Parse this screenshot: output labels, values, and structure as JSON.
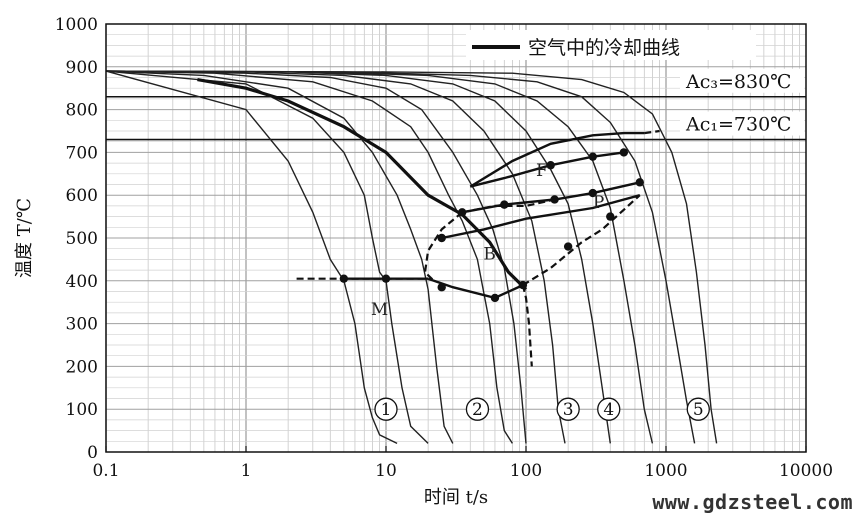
{
  "chart_data": {
    "type": "line",
    "xlabel": "时间 t/s",
    "ylabel": "温度 T/℃",
    "x_scale": "log",
    "xlim": [
      0.1,
      10000
    ],
    "ylim": [
      0,
      1000
    ],
    "x_ticks": [
      "0.1",
      "1",
      "10",
      "100",
      "1000",
      "10000"
    ],
    "x_tick_values": [
      0.1,
      1,
      10,
      100,
      1000,
      10000
    ],
    "y_ticks": [
      "0",
      "100",
      "200",
      "300",
      "400",
      "500",
      "600",
      "700",
      "800",
      "900",
      "1000"
    ],
    "y_tick_values": [
      0,
      100,
      200,
      300,
      400,
      500,
      600,
      700,
      800,
      900,
      1000
    ],
    "grid": true,
    "legend": {
      "label": "空气中的冷却曲线",
      "placement": "top-right"
    },
    "annotations": [
      {
        "text": "Ac₃=830℃",
        "y": 830
      },
      {
        "text": "Ac₁=730℃",
        "y": 730
      }
    ],
    "region_labels": [
      "F",
      "P",
      "B",
      "M"
    ],
    "curve_labels": [
      "①",
      "②",
      "③",
      "④",
      "⑤"
    ],
    "cooling_curves": [
      {
        "points": [
          [
            0.1,
            890
          ],
          [
            1,
            800
          ],
          [
            2,
            680
          ],
          [
            3,
            560
          ],
          [
            4,
            450
          ],
          [
            5,
            400
          ],
          [
            6,
            300
          ],
          [
            7,
            150
          ],
          [
            8,
            80
          ],
          [
            9,
            40
          ],
          [
            12,
            20
          ]
        ]
      },
      {
        "points": [
          [
            0.1,
            890
          ],
          [
            1,
            860
          ],
          [
            3,
            780
          ],
          [
            5,
            700
          ],
          [
            7,
            600
          ],
          [
            8,
            500
          ],
          [
            9,
            420
          ],
          [
            10,
            400
          ],
          [
            11,
            300
          ],
          [
            13,
            150
          ],
          [
            15,
            60
          ],
          [
            20,
            20
          ]
        ]
      },
      {
        "points": [
          [
            0.1,
            890
          ],
          [
            0.5,
            880
          ],
          [
            2,
            850
          ],
          [
            5,
            780
          ],
          [
            8,
            700
          ],
          [
            12,
            600
          ],
          [
            15,
            520
          ],
          [
            18,
            450
          ],
          [
            20,
            380
          ],
          [
            23,
            200
          ],
          [
            26,
            60
          ],
          [
            30,
            20
          ]
        ]
      },
      {
        "points": [
          [
            0.1,
            890
          ],
          [
            0.6,
            885
          ],
          [
            3,
            865
          ],
          [
            8,
            820
          ],
          [
            15,
            760
          ],
          [
            20,
            700
          ],
          [
            28,
            600
          ],
          [
            35,
            540
          ],
          [
            45,
            450
          ],
          [
            55,
            300
          ],
          [
            62,
            150
          ],
          [
            70,
            50
          ],
          [
            80,
            20
          ]
        ]
      },
      {
        "points": [
          [
            0.1,
            890
          ],
          [
            1,
            885
          ],
          [
            4,
            875
          ],
          [
            10,
            850
          ],
          [
            18,
            800
          ],
          [
            30,
            700
          ],
          [
            45,
            600
          ],
          [
            58,
            520
          ],
          [
            70,
            430
          ],
          [
            82,
            300
          ],
          [
            92,
            150
          ],
          [
            100,
            20
          ]
        ]
      },
      {
        "points": [
          [
            0.1,
            890
          ],
          [
            1,
            888
          ],
          [
            5,
            880
          ],
          [
            15,
            860
          ],
          [
            30,
            820
          ],
          [
            50,
            750
          ],
          [
            80,
            650
          ],
          [
            110,
            540
          ],
          [
            135,
            400
          ],
          [
            155,
            250
          ],
          [
            170,
            100
          ],
          [
            190,
            20
          ]
        ]
      },
      {
        "points": [
          [
            0.1,
            890
          ],
          [
            2,
            888
          ],
          [
            10,
            880
          ],
          [
            30,
            860
          ],
          [
            60,
            820
          ],
          [
            100,
            750
          ],
          [
            150,
            660
          ],
          [
            200,
            580
          ],
          [
            250,
            450
          ],
          [
            300,
            300
          ],
          [
            350,
            150
          ],
          [
            400,
            20
          ]
        ]
      },
      {
        "points": [
          [
            0.1,
            890
          ],
          [
            3,
            888
          ],
          [
            20,
            880
          ],
          [
            60,
            860
          ],
          [
            120,
            820
          ],
          [
            200,
            760
          ],
          [
            300,
            680
          ],
          [
            400,
            570
          ],
          [
            500,
            400
          ],
          [
            600,
            250
          ],
          [
            700,
            100
          ],
          [
            800,
            20
          ]
        ]
      },
      {
        "points": [
          [
            0.1,
            890
          ],
          [
            5,
            888
          ],
          [
            40,
            880
          ],
          [
            120,
            865
          ],
          [
            250,
            830
          ],
          [
            400,
            770
          ],
          [
            600,
            680
          ],
          [
            800,
            560
          ],
          [
            1000,
            400
          ],
          [
            1200,
            250
          ],
          [
            1400,
            120
          ],
          [
            1600,
            20
          ]
        ]
      },
      {
        "points": [
          [
            0.1,
            890
          ],
          [
            10,
            888
          ],
          [
            80,
            885
          ],
          [
            250,
            870
          ],
          [
            500,
            840
          ],
          [
            800,
            790
          ],
          [
            1100,
            700
          ],
          [
            1400,
            580
          ],
          [
            1650,
            420
          ],
          [
            1900,
            250
          ],
          [
            2100,
            100
          ],
          [
            2300,
            20
          ]
        ]
      }
    ],
    "air_cooling_curve": {
      "name": "空气中的冷却曲线",
      "points": [
        [
          0.45,
          870
        ],
        [
          1,
          850
        ],
        [
          2,
          820
        ],
        [
          5,
          760
        ],
        [
          10,
          700
        ],
        [
          20,
          600
        ],
        [
          35,
          555
        ],
        [
          55,
          490
        ],
        [
          75,
          420
        ],
        [
          100,
          380
        ]
      ]
    },
    "transformation_lines": [
      {
        "points": [
          [
            40,
            620
          ],
          [
            80,
            680
          ],
          [
            150,
            720
          ],
          [
            300,
            740
          ],
          [
            500,
            745
          ],
          [
            700,
            745
          ]
        ]
      },
      {
        "points": [
          [
            40,
            620
          ],
          [
            70,
            640
          ],
          [
            150,
            670
          ],
          [
            300,
            690
          ],
          [
            500,
            700
          ]
        ]
      },
      {
        "points": [
          [
            35,
            560
          ],
          [
            70,
            578
          ],
          [
            160,
            590
          ],
          [
            300,
            605
          ],
          [
            650,
            630
          ]
        ]
      },
      {
        "points": [
          [
            25,
            500
          ],
          [
            50,
            520
          ],
          [
            100,
            545
          ],
          [
            300,
            570
          ],
          [
            650,
            600
          ]
        ]
      },
      {
        "points": [
          [
            5,
            405
          ],
          [
            10,
            405
          ],
          [
            20,
            405
          ]
        ]
      },
      {
        "points": [
          [
            20,
            405
          ],
          [
            30,
            385
          ],
          [
            60,
            360
          ],
          [
            95,
            390
          ]
        ]
      }
    ],
    "dashed_lines": [
      {
        "points": [
          [
            2.3,
            405
          ],
          [
            5,
            405
          ],
          [
            10,
            405
          ],
          [
            20,
            405
          ]
        ]
      },
      {
        "points": [
          [
            35,
            560
          ],
          [
            25,
            520
          ],
          [
            20,
            470
          ],
          [
            19,
            420
          ],
          [
            22,
            400
          ]
        ]
      },
      {
        "points": [
          [
            95,
            390
          ],
          [
            100,
            360
          ],
          [
            105,
            300
          ],
          [
            110,
            200
          ]
        ]
      },
      {
        "points": [
          [
            95,
            390
          ],
          [
            150,
            430
          ],
          [
            250,
            490
          ],
          [
            350,
            520
          ],
          [
            650,
            600
          ]
        ]
      },
      {
        "points": [
          [
            700,
            745
          ],
          [
            900,
            750
          ]
        ]
      },
      {
        "points": [
          [
            35,
            560
          ],
          [
            60,
            575
          ],
          [
            100,
            575
          ],
          [
            160,
            590
          ]
        ]
      }
    ],
    "markers": [
      [
        5,
        405
      ],
      [
        10,
        405
      ],
      [
        25,
        385
      ],
      [
        60,
        360
      ],
      [
        95,
        390
      ],
      [
        35,
        560
      ],
      [
        25,
        500
      ],
      [
        70,
        578
      ],
      [
        160,
        590
      ],
      [
        300,
        605
      ],
      [
        650,
        630
      ],
      [
        150,
        670
      ],
      [
        300,
        690
      ],
      [
        500,
        700
      ],
      [
        200,
        480
      ],
      [
        400,
        550
      ]
    ]
  },
  "watermark": "www.gdzsteel.com"
}
